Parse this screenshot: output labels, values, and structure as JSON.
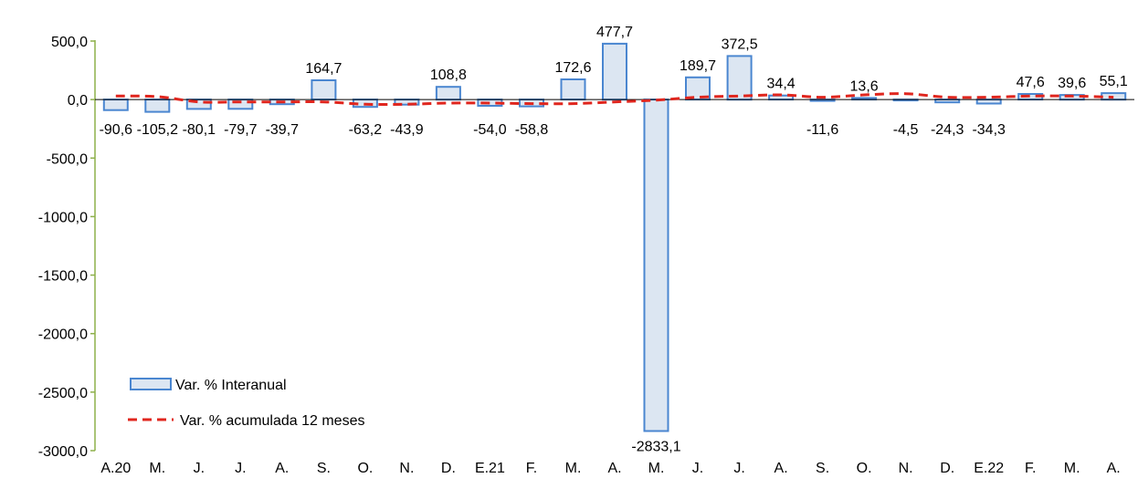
{
  "chart_data": {
    "type": "bar",
    "categories": [
      "A.20",
      "M.",
      "J.",
      "J.",
      "A.",
      "S.",
      "O.",
      "N.",
      "D.",
      "E.21",
      "F.",
      "M.",
      "A.",
      "M.",
      "J.",
      "J.",
      "A.",
      "S.",
      "O.",
      "N.",
      "D.",
      "E.22",
      "F.",
      "M.",
      "A."
    ],
    "series": [
      {
        "name": "Var. % Interanual",
        "type": "bar",
        "values": [
          -90.6,
          -105.2,
          -80.1,
          -79.7,
          -39.7,
          164.7,
          -63.2,
          -43.9,
          108.8,
          -54.0,
          -58.8,
          172.6,
          477.7,
          -2833.1,
          189.7,
          372.5,
          34.4,
          -11.6,
          13.6,
          -4.5,
          -24.3,
          -34.3,
          47.6,
          39.6,
          55.1
        ],
        "labels": [
          "-90,6",
          "-105,2",
          "-80,1",
          "-79,7",
          "-39,7",
          "164,7",
          "-63,2",
          "-43,9",
          "108,8",
          "-54,0",
          "-58,8",
          "172,6",
          "477,7",
          "-2833,1",
          "189,7",
          "372,5",
          "34,4",
          "-11,6",
          "13,6",
          "-4,5",
          "-24,3",
          "-34,3",
          "47,6",
          "39,6",
          "55,1"
        ]
      },
      {
        "name": "Var. % acumulada 12 meses",
        "type": "line",
        "values": [
          30,
          25,
          -20,
          -20,
          -20,
          -20,
          -40,
          -40,
          -30,
          -30,
          -35,
          -35,
          -20,
          -5,
          20,
          30,
          40,
          20,
          40,
          50,
          20,
          20,
          30,
          30,
          20
        ]
      }
    ],
    "y_ticks": [
      "500,0",
      "0,0",
      "-500,0",
      "-1000,0",
      "-1500,0",
      "-2000,0",
      "-2500,0",
      "-3000,0"
    ],
    "y_tick_values": [
      500,
      0,
      -500,
      -1000,
      -1500,
      -2000,
      -2500,
      -3000
    ],
    "ylim": [
      -3000,
      500
    ],
    "grid": false,
    "legend_position": "bottom-left",
    "colors": {
      "bar_fill": "#DCE6F2",
      "bar_stroke": "#4A86D0",
      "line": "#E0261E",
      "axis": "#8DB04A"
    }
  }
}
